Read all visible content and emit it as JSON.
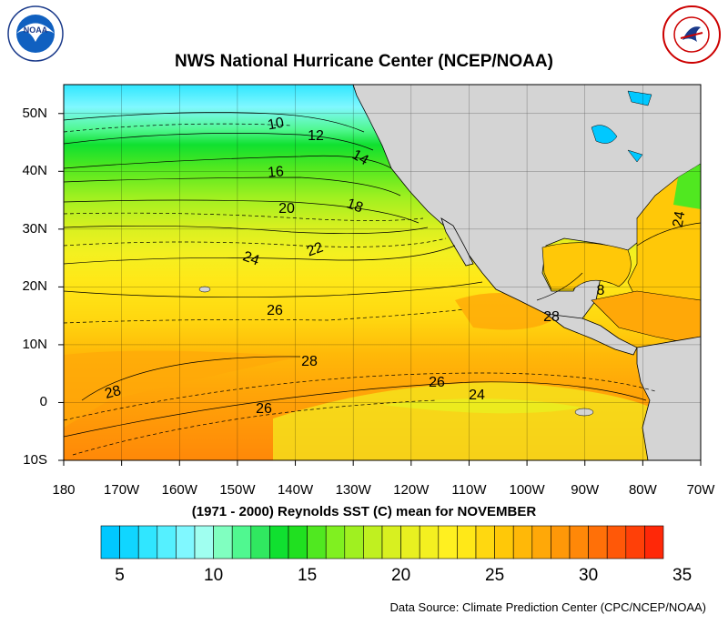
{
  "title": "NWS National Hurricane Center (NCEP/NOAA)",
  "subtitle": "(1971 - 2000) Reynolds SST (C) mean for NOVEMBER",
  "source": "Data Source: Climate Prediction Center (CPC/NCEP/NOAA)",
  "logos": {
    "left": "NOAA",
    "right": "National Weather Service"
  },
  "map": {
    "lon_range": [
      -180,
      -70
    ],
    "lat_range": [
      -10,
      55
    ],
    "lat_ticks": [
      "50N",
      "40N",
      "30N",
      "20N",
      "10N",
      "0",
      "10S"
    ],
    "lon_ticks": [
      "180",
      "170W",
      "160W",
      "150W",
      "140W",
      "130W",
      "120W",
      "110W",
      "100W",
      "90W",
      "80W",
      "70W"
    ],
    "contour_labels": [
      "10",
      "12",
      "14",
      "16",
      "18",
      "20",
      "22",
      "24",
      "26",
      "28",
      "28",
      "26",
      "26",
      "24",
      "28",
      "8",
      "24"
    ],
    "land_color": "#d4d4d4"
  },
  "colorbar": {
    "labels": [
      "5",
      "10",
      "15",
      "20",
      "25",
      "30",
      "35"
    ],
    "colors": [
      "#00c8ff",
      "#10d6ff",
      "#30e6ff",
      "#55f0ff",
      "#80f8ff",
      "#a0fff0",
      "#80ffc0",
      "#50f890",
      "#30e860",
      "#10e030",
      "#20e020",
      "#50e820",
      "#80f020",
      "#a0f020",
      "#c0f020",
      "#d8f020",
      "#e8f020",
      "#f4f020",
      "#fff020",
      "#ffe818",
      "#ffd810",
      "#ffc808",
      "#ffb808",
      "#ffa808",
      "#ff9808",
      "#ff8808",
      "#ff7008",
      "#ff5808",
      "#ff4008",
      "#ff2808"
    ]
  }
}
